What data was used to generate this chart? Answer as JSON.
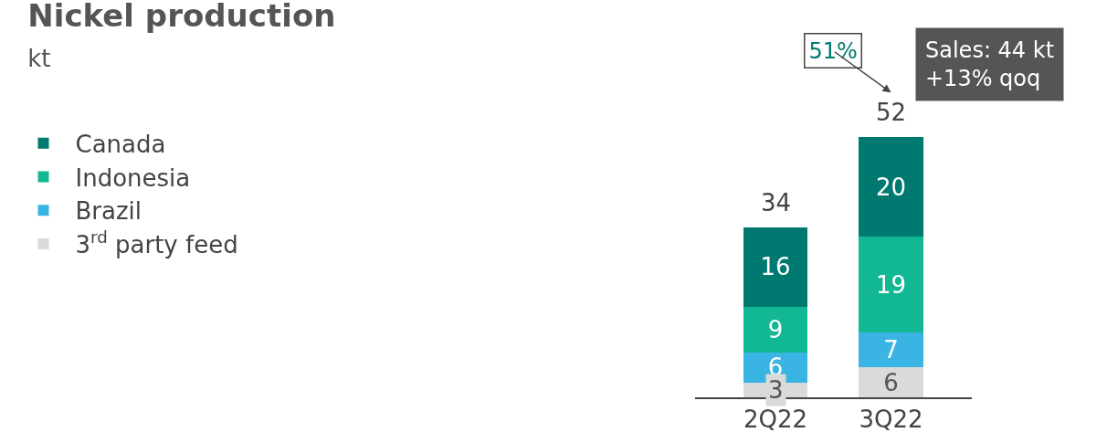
{
  "chart_data": {
    "type": "bar",
    "title": "Nickel production",
    "subtitle": "kt",
    "categories": [
      "2Q22",
      "3Q22"
    ],
    "stacked": true,
    "data_labels": true,
    "legend": "left",
    "totals": [
      "34",
      "52"
    ],
    "series": [
      {
        "name": "3$^{rd}$ party feed",
        "color": "#d9dadb",
        "values": [
          3,
          6
        ]
      },
      {
        "name": "Brazil",
        "color": "#3ab4e3",
        "values": [
          6,
          7
        ]
      },
      {
        "name": "Indonesia",
        "color": "#12b894",
        "values": [
          9,
          19
        ]
      },
      {
        "name": "Canada",
        "color": "#007a70",
        "values": [
          16,
          20
        ]
      }
    ],
    "annotations": [
      "51%",
      "Sales: 44 kt\n+13% qoq"
    ]
  }
}
